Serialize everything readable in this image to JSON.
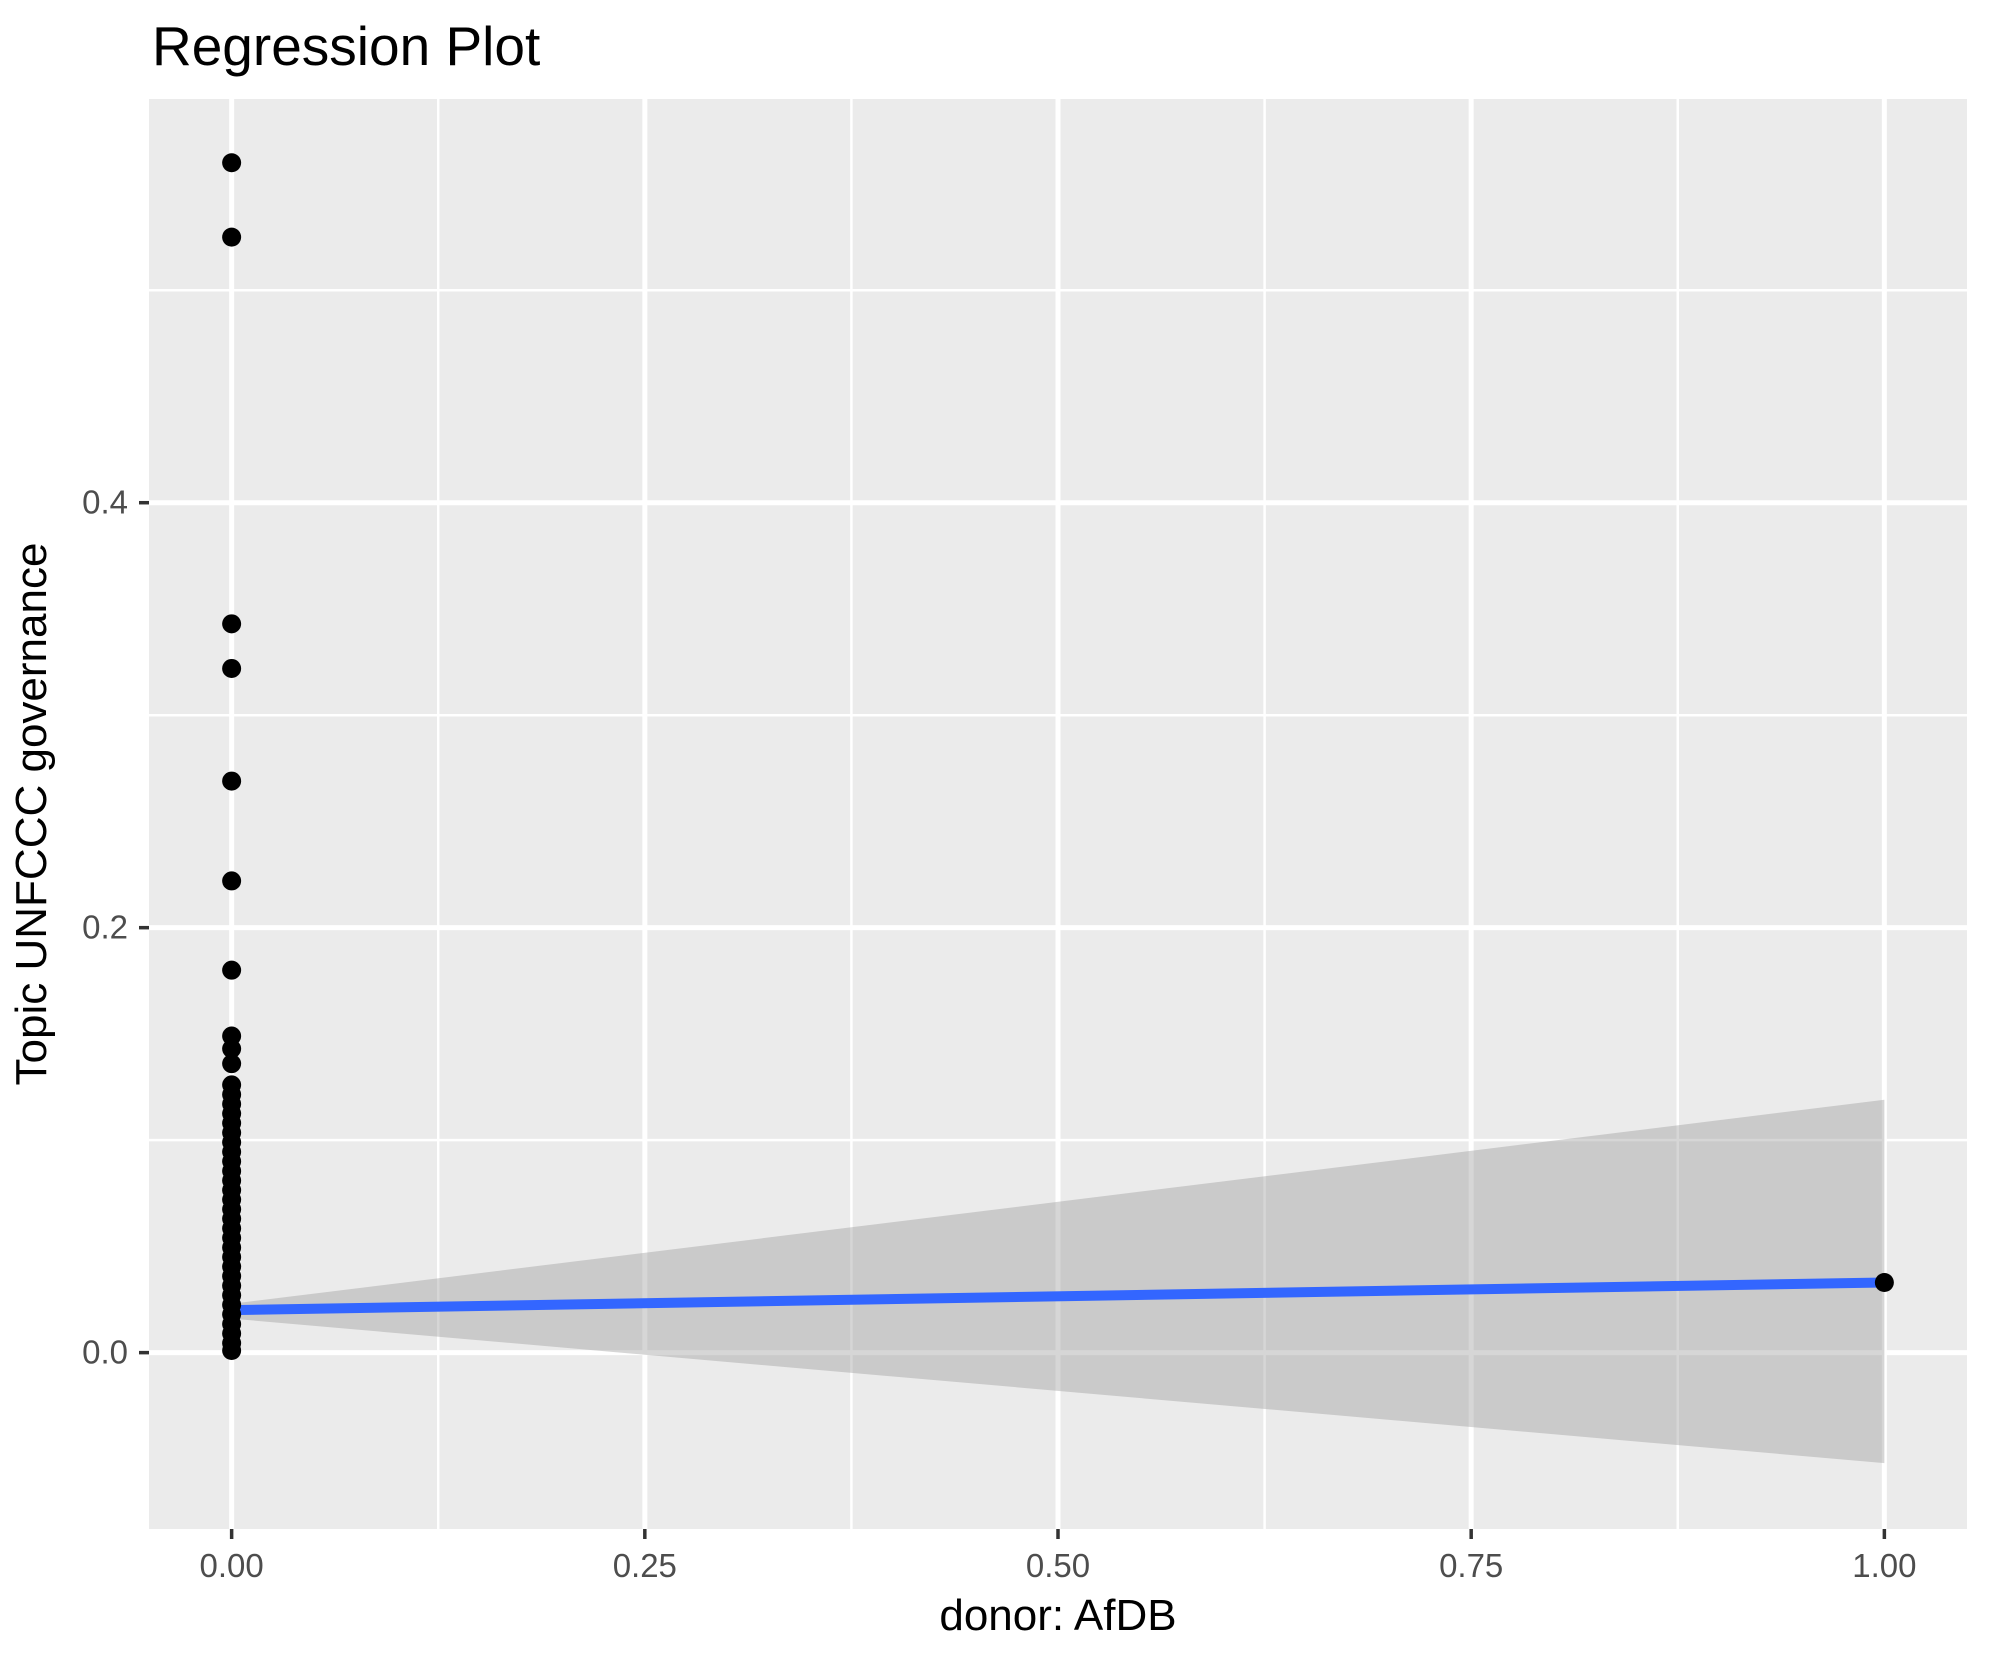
{
  "title": "Regression Plot",
  "axes": {
    "x": {
      "label": "donor: AfDB",
      "tick_labels": [
        "0.00",
        "0.25",
        "0.50",
        "0.75",
        "1.00"
      ],
      "tick_values": [
        0,
        0.25,
        0.5,
        0.75,
        1
      ],
      "minor_values": [
        0.125,
        0.375,
        0.625,
        0.875
      ],
      "lim": [
        -0.05,
        1.05
      ]
    },
    "y": {
      "label": "Topic UNFCCC governance",
      "tick_labels": [
        "0.0",
        "0.2",
        "0.4"
      ],
      "tick_values": [
        0,
        0.2,
        0.4
      ],
      "minor_values": [
        0.1,
        0.3,
        0.5
      ],
      "lim": [
        -0.083,
        0.59
      ]
    }
  },
  "colors": {
    "background": "#FFFFFF",
    "panel": "#EBEBEB",
    "grid": "#FFFFFF",
    "point": "#000000",
    "regression_line": "#3366FF",
    "confidence_band": "#999999",
    "confidence_band_alpha": 0.4,
    "tick_text": "#4D4D4D",
    "tick_mark": "#333333",
    "title_text": "#000000"
  },
  "chart_data": {
    "type": "scatter",
    "title": "Regression Plot",
    "xlabel": "donor: AfDB",
    "ylabel": "Topic UNFCCC governance",
    "xlim": [
      -0.05,
      1.05
    ],
    "ylim": [
      -0.083,
      0.59
    ],
    "grid": true,
    "legend": false,
    "points_x0_y": [
      0.56,
      0.525,
      0.343,
      0.322,
      0.269,
      0.222,
      0.18,
      0.149,
      0.143,
      0.136,
      0.126,
      0.1215,
      0.117,
      0.1125,
      0.108,
      0.1035,
      0.099,
      0.0945,
      0.09,
      0.0855,
      0.081,
      0.0765,
      0.072,
      0.0675,
      0.063,
      0.0585,
      0.054,
      0.0495,
      0.045,
      0.0405,
      0.036,
      0.0315,
      0.027,
      0.0225,
      0.018,
      0.0135,
      0.009,
      0.0045,
      0.001
    ],
    "points_x1_y": [
      0.033
    ],
    "regression_line": {
      "x": [
        0,
        1
      ],
      "y": [
        0.02,
        0.033
      ]
    },
    "confidence_band": {
      "x": [
        0,
        1
      ],
      "upper": [
        0.023,
        0.119
      ],
      "lower": [
        0.016,
        -0.052
      ]
    }
  }
}
